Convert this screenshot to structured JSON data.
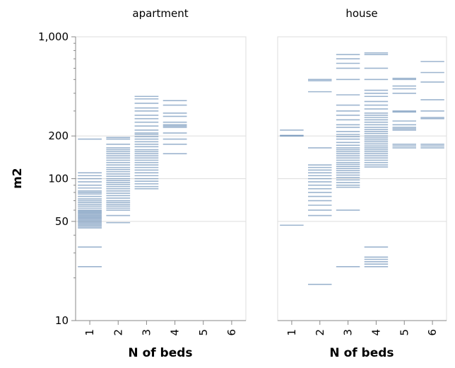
{
  "chart_data": {
    "type": "strip",
    "y_scale": "log",
    "ylabel": "m2",
    "xlabel": "N of beds",
    "ylim": [
      10,
      1000
    ],
    "yticks": [
      10,
      50,
      100,
      200,
      1000
    ],
    "ytick_labels": [
      "10",
      "50",
      "100",
      "200",
      "1,000"
    ],
    "categories": [
      "1",
      "2",
      "3",
      "4",
      "5",
      "6"
    ],
    "grid": true,
    "mark_color": "#4c78a8",
    "facets": [
      {
        "title": "apartment",
        "groups": [
          {
            "beds": "1",
            "values": [
              190,
              110,
              105,
              100,
              95,
              90,
              86,
              82,
              80,
              78,
              75,
              72,
              70,
              68,
              66,
              64,
              62,
              60,
              59,
              58,
              57,
              56,
              55,
              54,
              53,
              52,
              51,
              50,
              49,
              48,
              47,
              46,
              45,
              33,
              24
            ]
          },
          {
            "beds": "2",
            "values": [
              195,
              190,
              175,
              165,
              160,
              155,
              150,
              145,
              140,
              135,
              130,
              125,
              120,
              116,
              112,
              108,
              104,
              100,
              97,
              94,
              91,
              88,
              85,
              82,
              79,
              76,
              73,
              70,
              68,
              66,
              64,
              62,
              60,
              55,
              49
            ]
          },
          {
            "beds": "3",
            "values": [
              380,
              365,
              340,
              315,
              300,
              280,
              265,
              250,
              235,
              220,
              210,
              205,
              198,
              190,
              182,
              175,
              168,
              160,
              155,
              150,
              145,
              140,
              135,
              130,
              125,
              120,
              115,
              110,
              105,
              100,
              96,
              92,
              88,
              85
            ]
          },
          {
            "beds": "4",
            "values": [
              355,
              330,
              290,
              275,
              250,
              240,
              235,
              230,
              210,
              190,
              175,
              150
            ]
          },
          {
            "beds": "5",
            "values": []
          },
          {
            "beds": "6",
            "values": []
          }
        ]
      },
      {
        "title": "house",
        "groups": [
          {
            "beds": "1",
            "values": [
              220,
              202,
              200,
              47
            ]
          },
          {
            "beds": "2",
            "values": [
              500,
              490,
              410,
              165,
              125,
              120,
              115,
              110,
              105,
              100,
              95,
              90,
              85,
              80,
              75,
              70,
              65,
              60,
              55,
              18
            ]
          },
          {
            "beds": "3",
            "values": [
              750,
              700,
              650,
              600,
              500,
              390,
              330,
              300,
              280,
              260,
              240,
              230,
              215,
              205,
              198,
              190,
              180,
              172,
              165,
              160,
              155,
              150,
              145,
              140,
              135,
              130,
              126,
              122,
              118,
              114,
              110,
              106,
              102,
              98,
              94,
              90,
              87,
              60,
              24
            ]
          },
          {
            "beds": "4",
            "values": [
              770,
              750,
              600,
              500,
              420,
              400,
              380,
              350,
              330,
              310,
              290,
              280,
              270,
              260,
              250,
              240,
              230,
              222,
              215,
              208,
              200,
              194,
              188,
              182,
              176,
              170,
              165,
              160,
              155,
              150,
              145,
              140,
              135,
              130,
              125,
              121,
              33,
              28,
              27,
              26,
              25,
              24
            ]
          },
          {
            "beds": "5",
            "values": [
              510,
              500,
              450,
              430,
              400,
              300,
              295,
              255,
              240,
              230,
              225,
              220,
              175,
              170,
              165
            ]
          },
          {
            "beds": "6",
            "values": [
              670,
              560,
              480,
              360,
              300,
              270,
              265,
              175,
              170,
              165
            ]
          }
        ]
      }
    ]
  }
}
